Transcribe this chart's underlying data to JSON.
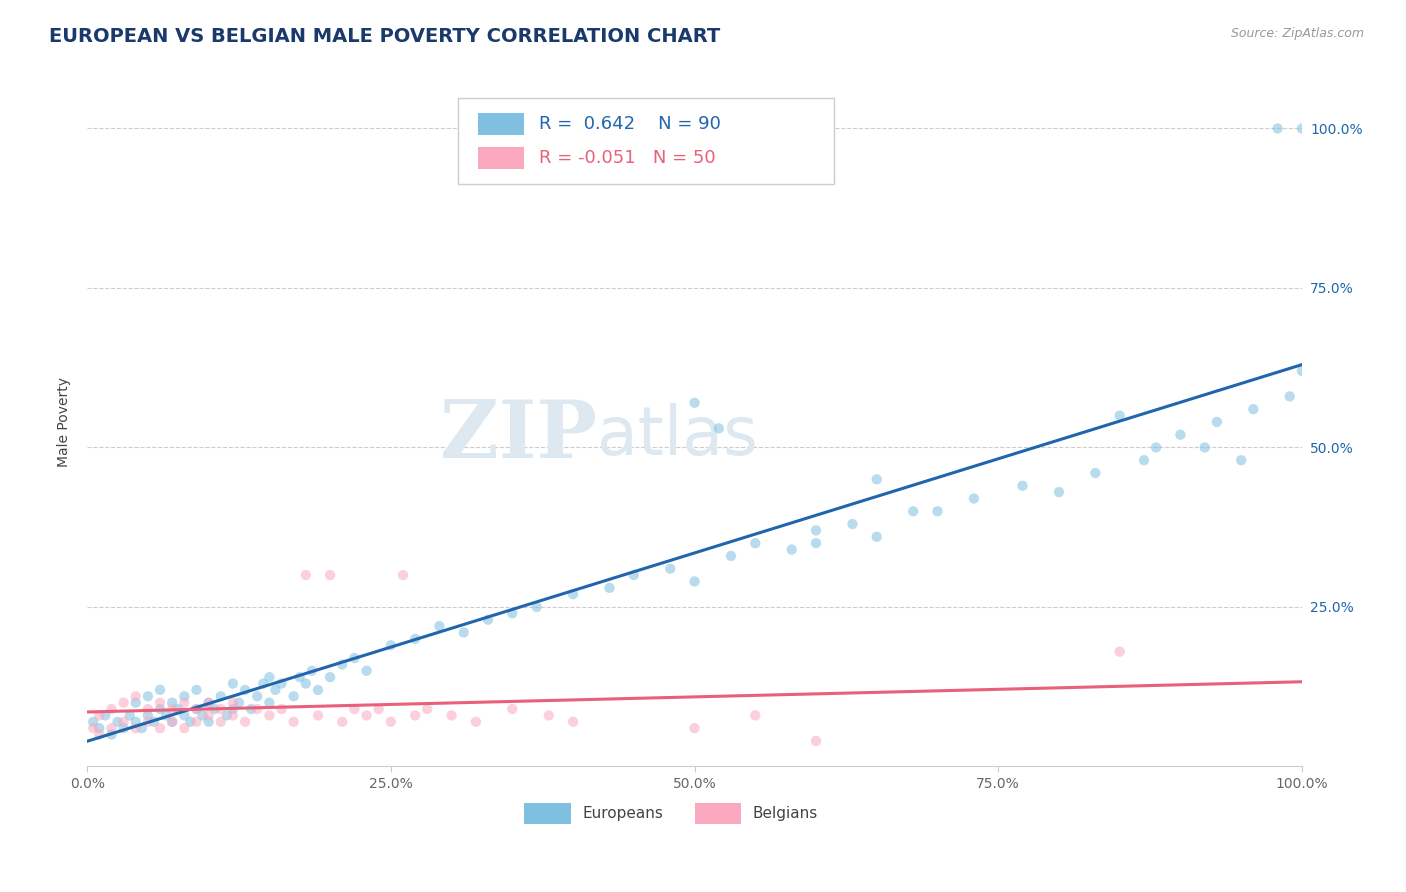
{
  "title": "EUROPEAN VS BELGIAN MALE POVERTY CORRELATION CHART",
  "source": "Source: ZipAtlas.com",
  "ylabel": "Male Poverty",
  "xlim": [
    0.0,
    1.0
  ],
  "ylim": [
    0.0,
    1.08
  ],
  "x_tick_labels": [
    "0.0%",
    "25.0%",
    "50.0%",
    "75.0%",
    "100.0%"
  ],
  "x_tick_vals": [
    0.0,
    0.25,
    0.5,
    0.75,
    1.0
  ],
  "y_tick_labels": [
    "25.0%",
    "50.0%",
    "75.0%",
    "100.0%"
  ],
  "y_tick_vals": [
    0.25,
    0.5,
    0.75,
    1.0
  ],
  "european_color": "#7fbfdf",
  "belgian_color": "#f9a8c0",
  "trendline_european_color": "#2166ac",
  "trendline_belgian_color": "#e8607a",
  "R_european": 0.642,
  "N_european": 90,
  "R_belgian": -0.051,
  "N_belgian": 50,
  "watermark_zip": "ZIP",
  "watermark_atlas": "atlas",
  "legend_labels": [
    "Europeans",
    "Belgians"
  ],
  "background_color": "#ffffff",
  "grid_color": "#cccccc",
  "title_color": "#1a3a6b",
  "title_fontsize": 14,
  "axis_label_fontsize": 10,
  "tick_fontsize": 10,
  "scatter_size": 55,
  "scatter_alpha": 0.55,
  "trendline_lw": 2.2,
  "european_scatter_x": [
    0.005,
    0.01,
    0.015,
    0.02,
    0.025,
    0.03,
    0.035,
    0.04,
    0.04,
    0.045,
    0.05,
    0.05,
    0.055,
    0.06,
    0.06,
    0.065,
    0.07,
    0.07,
    0.075,
    0.08,
    0.08,
    0.085,
    0.09,
    0.09,
    0.095,
    0.1,
    0.1,
    0.105,
    0.11,
    0.115,
    0.12,
    0.12,
    0.125,
    0.13,
    0.135,
    0.14,
    0.145,
    0.15,
    0.15,
    0.155,
    0.16,
    0.17,
    0.175,
    0.18,
    0.185,
    0.19,
    0.2,
    0.21,
    0.22,
    0.23,
    0.25,
    0.27,
    0.29,
    0.31,
    0.33,
    0.35,
    0.37,
    0.4,
    0.43,
    0.45,
    0.48,
    0.5,
    0.53,
    0.55,
    0.58,
    0.6,
    0.63,
    0.65,
    0.7,
    0.73,
    0.77,
    0.8,
    0.83,
    0.87,
    0.88,
    0.9,
    0.93,
    0.96,
    0.99,
    1.0,
    0.5,
    0.52,
    0.65,
    0.68,
    0.6,
    0.85,
    0.92,
    0.95,
    0.98,
    1.0
  ],
  "european_scatter_y": [
    0.07,
    0.06,
    0.08,
    0.05,
    0.07,
    0.06,
    0.08,
    0.07,
    0.1,
    0.06,
    0.08,
    0.11,
    0.07,
    0.09,
    0.12,
    0.08,
    0.07,
    0.1,
    0.09,
    0.08,
    0.11,
    0.07,
    0.09,
    0.12,
    0.08,
    0.07,
    0.1,
    0.09,
    0.11,
    0.08,
    0.09,
    0.13,
    0.1,
    0.12,
    0.09,
    0.11,
    0.13,
    0.1,
    0.14,
    0.12,
    0.13,
    0.11,
    0.14,
    0.13,
    0.15,
    0.12,
    0.14,
    0.16,
    0.17,
    0.15,
    0.19,
    0.2,
    0.22,
    0.21,
    0.23,
    0.24,
    0.25,
    0.27,
    0.28,
    0.3,
    0.31,
    0.29,
    0.33,
    0.35,
    0.34,
    0.37,
    0.38,
    0.36,
    0.4,
    0.42,
    0.44,
    0.43,
    0.46,
    0.48,
    0.5,
    0.52,
    0.54,
    0.56,
    0.58,
    0.62,
    0.57,
    0.53,
    0.45,
    0.4,
    0.35,
    0.55,
    0.5,
    0.48,
    1.0,
    1.0
  ],
  "belgian_scatter_x": [
    0.005,
    0.01,
    0.01,
    0.02,
    0.02,
    0.03,
    0.03,
    0.04,
    0.04,
    0.05,
    0.05,
    0.06,
    0.06,
    0.07,
    0.07,
    0.08,
    0.08,
    0.09,
    0.09,
    0.1,
    0.1,
    0.11,
    0.11,
    0.12,
    0.12,
    0.13,
    0.14,
    0.15,
    0.16,
    0.17,
    0.18,
    0.19,
    0.2,
    0.21,
    0.22,
    0.23,
    0.24,
    0.25,
    0.26,
    0.27,
    0.28,
    0.3,
    0.32,
    0.35,
    0.38,
    0.4,
    0.5,
    0.55,
    0.6,
    0.85
  ],
  "belgian_scatter_y": [
    0.06,
    0.05,
    0.08,
    0.06,
    0.09,
    0.07,
    0.1,
    0.06,
    0.11,
    0.07,
    0.09,
    0.06,
    0.1,
    0.07,
    0.09,
    0.06,
    0.1,
    0.07,
    0.09,
    0.08,
    0.1,
    0.07,
    0.09,
    0.08,
    0.1,
    0.07,
    0.09,
    0.08,
    0.09,
    0.07,
    0.3,
    0.08,
    0.3,
    0.07,
    0.09,
    0.08,
    0.09,
    0.07,
    0.3,
    0.08,
    0.09,
    0.08,
    0.07,
    0.09,
    0.08,
    0.07,
    0.06,
    0.08,
    0.04,
    0.18
  ]
}
